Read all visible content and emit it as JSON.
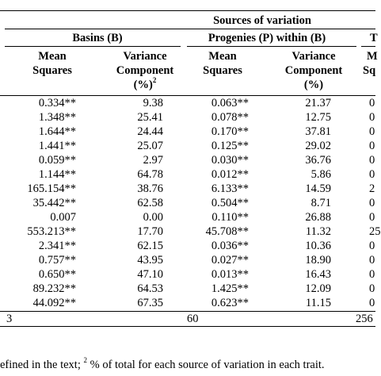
{
  "header": {
    "sources": "Sources of variation",
    "basins": "Basins (B)",
    "progenies": "Progenies (P) within (B)",
    "third_partial": "T",
    "mean_squares_line1": "Mean",
    "mean_squares_line2": "Squares",
    "variance_line1": "Variance",
    "variance_line2": "Component",
    "variance_line3": "(%)",
    "variance_sup": "2",
    "third_ms_line1_partial": "M",
    "third_ms_line2_partial": "Sq"
  },
  "rows": [
    {
      "b_ms": "0.334**",
      "b_vc": "9.38",
      "p_ms": "0.063**",
      "p_vc": "21.37",
      "t": "0"
    },
    {
      "b_ms": "1.348**",
      "b_vc": "25.41",
      "p_ms": "0.078**",
      "p_vc": "12.75",
      "t": "0"
    },
    {
      "b_ms": "1.644**",
      "b_vc": "24.44",
      "p_ms": "0.170**",
      "p_vc": "37.81",
      "t": "0"
    },
    {
      "b_ms": "1.441**",
      "b_vc": "25.07",
      "p_ms": "0.125**",
      "p_vc": "29.02",
      "t": "0"
    },
    {
      "b_ms": "0.059**",
      "b_vc": "2.97",
      "p_ms": "0.030**",
      "p_vc": "36.76",
      "t": "0"
    },
    {
      "b_ms": "1.144**",
      "b_vc": "64.78",
      "p_ms": "0.012**",
      "p_vc": "5.86",
      "t": "0"
    },
    {
      "b_ms": "165.154**",
      "b_vc": "38.76",
      "p_ms": "6.133**",
      "p_vc": "14.59",
      "t": "2"
    },
    {
      "b_ms": "35.442**",
      "b_vc": "62.58",
      "p_ms": "0.504**",
      "p_vc": "8.71",
      "t": "0"
    },
    {
      "b_ms": "0.007",
      "b_vc": "0.00",
      "p_ms": "0.110**",
      "p_vc": "26.88",
      "t": "0"
    },
    {
      "b_ms": "553.213**",
      "b_vc": "17.70",
      "p_ms": "45.708**",
      "p_vc": "11.32",
      "t": "25"
    },
    {
      "b_ms": "2.341**",
      "b_vc": "62.15",
      "p_ms": "0.036**",
      "p_vc": "10.36",
      "t": "0"
    },
    {
      "b_ms": "0.757**",
      "b_vc": "43.95",
      "p_ms": "0.027**",
      "p_vc": "18.90",
      "t": "0"
    },
    {
      "b_ms": "0.650**",
      "b_vc": "47.10",
      "p_ms": "0.013**",
      "p_vc": "16.43",
      "t": "0"
    },
    {
      "b_ms": "89.232**",
      "b_vc": "64.53",
      "p_ms": "1.425**",
      "p_vc": "12.09",
      "t": "0"
    },
    {
      "b_ms": "44.092**",
      "b_vc": "67.35",
      "p_ms": "0.623**",
      "p_vc": "11.15",
      "t": "0"
    }
  ],
  "df_row": {
    "b": "3",
    "p": "60",
    "t": "256"
  },
  "footnote": {
    "pre": "efined in the text; ",
    "sup": "2",
    "post": " % of total for each source of variation in each trait."
  }
}
